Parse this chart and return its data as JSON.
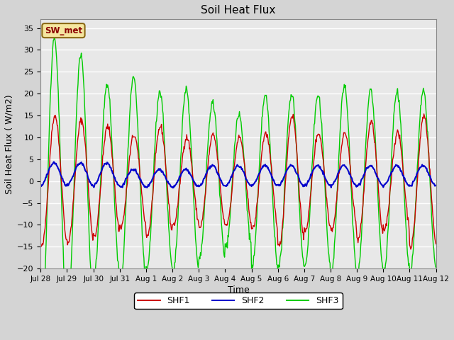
{
  "title": "Soil Heat Flux",
  "xlabel": "Time",
  "ylabel": "Soil Heat Flux ( W/m2)",
  "ylim": [
    -20,
    37
  ],
  "yticks": [
    -20,
    -15,
    -10,
    -5,
    0,
    5,
    10,
    15,
    20,
    25,
    30,
    35
  ],
  "annotation_text": "SW_met",
  "legend_labels": [
    "SHF1",
    "SHF2",
    "SHF3"
  ],
  "colors": {
    "SHF1": "#cc0000",
    "SHF2": "#0000cc",
    "SHF3": "#00cc00"
  },
  "fig_facecolor": "#d4d4d4",
  "ax_facecolor": "#e8e8e8",
  "grid_color": "#ffffff",
  "x_tick_labels": [
    "Jul 28",
    "Jul 29",
    "Jul 30",
    "Jul 31",
    "Aug 1",
    "Aug 2",
    "Aug 3",
    "Aug 4",
    "Aug 5",
    "Aug 6",
    "Aug 7",
    "Aug 8",
    "Aug 9",
    "Aug 10",
    "Aug 11",
    "Aug 12"
  ],
  "figsize": [
    6.4,
    4.8
  ],
  "dpi": 100
}
